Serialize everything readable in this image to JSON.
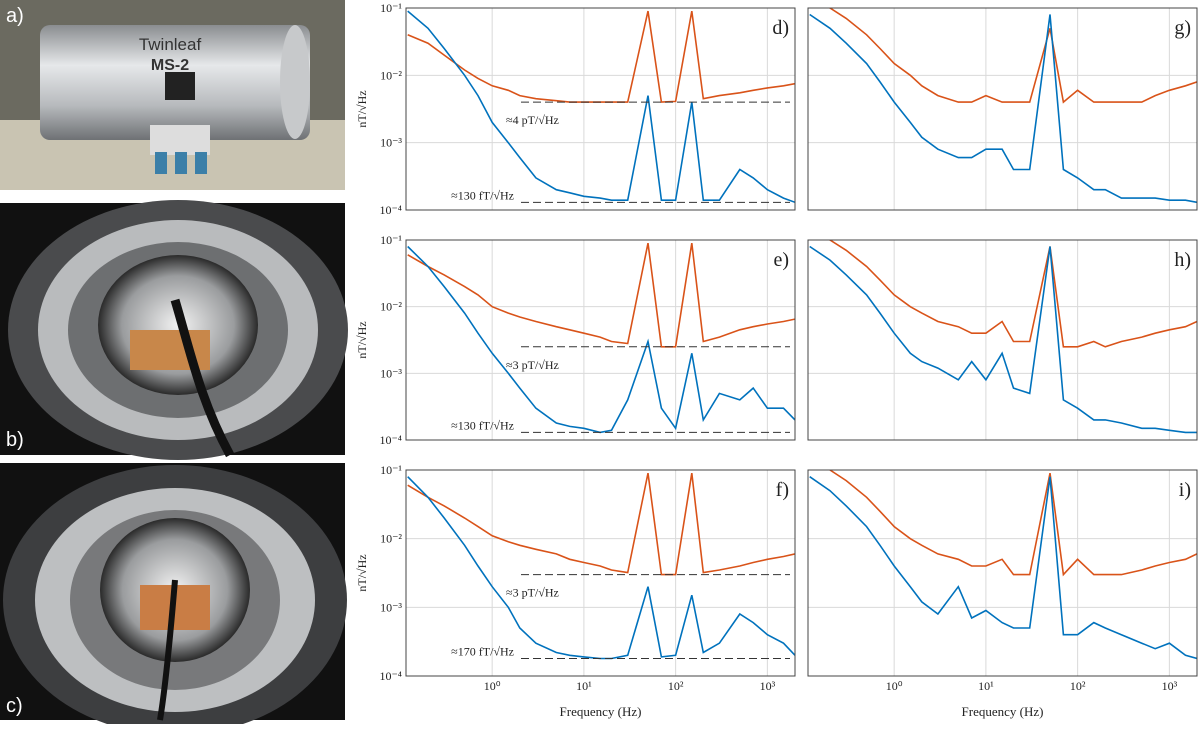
{
  "photos": [
    {
      "label": "a)",
      "texts": [
        "Twinleaf",
        "MS-2"
      ]
    },
    {
      "label": "b)"
    },
    {
      "label": "c)"
    }
  ],
  "chart_data": [
    {
      "type": "line",
      "panel": "d)",
      "ylabel": "nT/√Hz",
      "x": [
        0.12,
        0.2,
        0.3,
        0.5,
        0.7,
        1,
        1.5,
        2,
        3,
        5,
        7,
        10,
        15,
        20,
        30,
        50,
        70,
        100,
        150,
        200,
        300,
        500,
        700,
        1000,
        1500,
        2000
      ],
      "series": [
        {
          "color": "#d95319",
          "values": [
            0.04,
            0.03,
            0.02,
            0.012,
            0.009,
            0.007,
            0.006,
            0.005,
            0.0045,
            0.0042,
            0.004,
            0.004,
            0.004,
            0.004,
            0.004,
            0.09,
            0.004,
            0.0041,
            0.09,
            0.0045,
            0.005,
            0.0055,
            0.006,
            0.0065,
            0.007,
            0.0075
          ]
        },
        {
          "color": "#0072bd",
          "values": [
            0.09,
            0.05,
            0.025,
            0.01,
            0.005,
            0.002,
            0.001,
            0.0006,
            0.0003,
            0.0002,
            0.00018,
            0.00016,
            0.00015,
            0.00014,
            0.00014,
            0.005,
            0.00014,
            0.00014,
            0.004,
            0.00014,
            0.00014,
            0.0004,
            0.0003,
            0.0002,
            0.00015,
            0.00013
          ]
        }
      ],
      "annotations": [
        {
          "text": "≈4 pT/√Hz",
          "value": 0.004
        },
        {
          "text": "≈130 fT/√Hz",
          "value": 0.00013
        }
      ],
      "xlim": [
        0.115,
        2000
      ],
      "ylim": [
        0.0001,
        0.1
      ],
      "xticks": [
        {
          "value": 1,
          "label": "10⁰"
        },
        {
          "value": 10,
          "label": "10¹"
        },
        {
          "value": 100,
          "label": "10²"
        },
        {
          "value": 1000,
          "label": "10³"
        }
      ],
      "yticks": [
        {
          "value": 0.0001,
          "label": "10⁻⁴"
        },
        {
          "value": 0.001,
          "label": "10⁻³"
        },
        {
          "value": 0.01,
          "label": "10⁻²"
        },
        {
          "value": 0.1,
          "label": "10⁻¹"
        }
      ],
      "log_x": true,
      "log_y": true,
      "grid": true
    },
    {
      "type": "line",
      "panel": "e)",
      "ylabel": "nT/√Hz",
      "x": [
        0.12,
        0.2,
        0.3,
        0.5,
        0.7,
        1,
        1.5,
        2,
        3,
        5,
        7,
        10,
        15,
        20,
        30,
        50,
        70,
        100,
        150,
        200,
        300,
        500,
        700,
        1000,
        1500,
        2000
      ],
      "series": [
        {
          "color": "#d95319",
          "values": [
            0.06,
            0.04,
            0.03,
            0.02,
            0.015,
            0.01,
            0.008,
            0.007,
            0.006,
            0.005,
            0.0045,
            0.004,
            0.0035,
            0.003,
            0.0028,
            0.09,
            0.0025,
            0.0025,
            0.09,
            0.003,
            0.0035,
            0.0045,
            0.005,
            0.0055,
            0.006,
            0.0065
          ]
        },
        {
          "color": "#0072bd",
          "values": [
            0.08,
            0.04,
            0.02,
            0.008,
            0.004,
            0.002,
            0.001,
            0.0006,
            0.0003,
            0.00018,
            0.00016,
            0.00015,
            0.00013,
            0.00014,
            0.0004,
            0.003,
            0.0003,
            0.00015,
            0.002,
            0.0002,
            0.0005,
            0.0004,
            0.0006,
            0.0003,
            0.0003,
            0.0002
          ]
        }
      ],
      "annotations": [
        {
          "text": "≈3 pT/√Hz",
          "value": 0.0025
        },
        {
          "text": "≈130 fT/√Hz",
          "value": 0.00013
        }
      ],
      "xlim": [
        0.115,
        2000
      ],
      "ylim": [
        0.0001,
        0.1
      ],
      "xticks": [
        {
          "value": 1,
          "label": "10⁰"
        },
        {
          "value": 10,
          "label": "10¹"
        },
        {
          "value": 100,
          "label": "10²"
        },
        {
          "value": 1000,
          "label": "10³"
        }
      ],
      "yticks": [
        {
          "value": 0.0001,
          "label": "10⁻⁴"
        },
        {
          "value": 0.001,
          "label": "10⁻³"
        },
        {
          "value": 0.01,
          "label": "10⁻²"
        },
        {
          "value": 0.1,
          "label": "10⁻¹"
        }
      ],
      "log_x": true,
      "log_y": true,
      "grid": true
    },
    {
      "type": "line",
      "panel": "f)",
      "ylabel": "nT/√Hz",
      "xlabel": "Frequency (Hz)",
      "x": [
        0.12,
        0.2,
        0.3,
        0.5,
        0.7,
        1,
        1.5,
        2,
        3,
        5,
        7,
        10,
        15,
        20,
        30,
        50,
        70,
        100,
        150,
        200,
        300,
        500,
        700,
        1000,
        1500,
        2000
      ],
      "series": [
        {
          "color": "#d95319",
          "values": [
            0.06,
            0.04,
            0.03,
            0.02,
            0.015,
            0.011,
            0.009,
            0.008,
            0.007,
            0.006,
            0.005,
            0.0045,
            0.004,
            0.0035,
            0.0032,
            0.09,
            0.003,
            0.003,
            0.09,
            0.0032,
            0.0035,
            0.004,
            0.0045,
            0.005,
            0.0055,
            0.006
          ]
        },
        {
          "color": "#0072bd",
          "values": [
            0.08,
            0.04,
            0.02,
            0.008,
            0.004,
            0.002,
            0.001,
            0.0005,
            0.0003,
            0.00022,
            0.0002,
            0.00019,
            0.00018,
            0.00018,
            0.0002,
            0.002,
            0.00019,
            0.0002,
            0.0015,
            0.00022,
            0.0003,
            0.0008,
            0.0006,
            0.0004,
            0.0003,
            0.0002
          ]
        }
      ],
      "annotations": [
        {
          "text": "≈3 pT/√Hz",
          "value": 0.003
        },
        {
          "text": "≈170 fT/√Hz",
          "value": 0.00018
        }
      ],
      "xlim": [
        0.115,
        2000
      ],
      "ylim": [
        0.0001,
        0.1
      ],
      "xticks": [
        {
          "value": 1,
          "label": "10⁰"
        },
        {
          "value": 10,
          "label": "10¹"
        },
        {
          "value": 100,
          "label": "10²"
        },
        {
          "value": 1000,
          "label": "10³"
        }
      ],
      "yticks": [
        {
          "value": 0.0001,
          "label": "10⁻⁴"
        },
        {
          "value": 0.001,
          "label": "10⁻³"
        },
        {
          "value": 0.01,
          "label": "10⁻²"
        },
        {
          "value": 0.1,
          "label": "10⁻¹"
        }
      ],
      "log_x": true,
      "log_y": true,
      "grid": true
    },
    {
      "type": "line",
      "panel": "g)",
      "x": [
        0.12,
        0.2,
        0.3,
        0.5,
        0.7,
        1,
        1.5,
        2,
        3,
        5,
        7,
        10,
        15,
        20,
        30,
        50,
        70,
        100,
        150,
        200,
        300,
        500,
        700,
        1000,
        1500,
        2000
      ],
      "series": [
        {
          "color": "#d95319",
          "values": [
            0.15,
            0.1,
            0.07,
            0.04,
            0.025,
            0.015,
            0.01,
            0.007,
            0.005,
            0.004,
            0.004,
            0.005,
            0.004,
            0.004,
            0.004,
            0.05,
            0.004,
            0.006,
            0.004,
            0.004,
            0.004,
            0.004,
            0.005,
            0.006,
            0.007,
            0.008
          ]
        },
        {
          "color": "#0072bd",
          "values": [
            0.08,
            0.05,
            0.03,
            0.015,
            0.008,
            0.004,
            0.002,
            0.0012,
            0.0008,
            0.0006,
            0.0006,
            0.0008,
            0.0008,
            0.0004,
            0.0004,
            0.08,
            0.0004,
            0.0003,
            0.0002,
            0.0002,
            0.00015,
            0.00015,
            0.00015,
            0.00014,
            0.00014,
            0.00013
          ]
        }
      ],
      "xlim": [
        0.115,
        2000
      ],
      "ylim": [
        0.0001,
        0.1
      ],
      "xticks": [
        {
          "value": 1,
          "label": "10⁰"
        },
        {
          "value": 10,
          "label": "10¹"
        },
        {
          "value": 100,
          "label": "10²"
        },
        {
          "value": 1000,
          "label": "10³"
        }
      ],
      "yticks": [
        {
          "value": 0.0001,
          "label": "10⁻⁴"
        },
        {
          "value": 0.001,
          "label": "10⁻³"
        },
        {
          "value": 0.01,
          "label": "10⁻²"
        },
        {
          "value": 0.1,
          "label": "10⁻¹"
        }
      ],
      "log_x": true,
      "log_y": true,
      "grid": true
    },
    {
      "type": "line",
      "panel": "h)",
      "x": [
        0.12,
        0.2,
        0.3,
        0.5,
        0.7,
        1,
        1.5,
        2,
        3,
        5,
        7,
        10,
        15,
        20,
        30,
        50,
        70,
        100,
        150,
        200,
        300,
        500,
        700,
        1000,
        1500,
        2000
      ],
      "series": [
        {
          "color": "#d95319",
          "values": [
            0.15,
            0.1,
            0.07,
            0.04,
            0.025,
            0.015,
            0.01,
            0.008,
            0.006,
            0.005,
            0.004,
            0.004,
            0.006,
            0.003,
            0.003,
            0.08,
            0.0025,
            0.0025,
            0.003,
            0.0025,
            0.003,
            0.0035,
            0.004,
            0.0045,
            0.005,
            0.006
          ]
        },
        {
          "color": "#0072bd",
          "values": [
            0.08,
            0.05,
            0.03,
            0.015,
            0.008,
            0.004,
            0.002,
            0.0015,
            0.0012,
            0.0008,
            0.0015,
            0.0008,
            0.002,
            0.0006,
            0.0005,
            0.08,
            0.0004,
            0.0003,
            0.0002,
            0.0002,
            0.00018,
            0.00015,
            0.00015,
            0.00014,
            0.00013,
            0.00013
          ]
        }
      ],
      "xlim": [
        0.115,
        2000
      ],
      "ylim": [
        0.0001,
        0.1
      ],
      "xticks": [
        {
          "value": 1,
          "label": "10⁰"
        },
        {
          "value": 10,
          "label": "10¹"
        },
        {
          "value": 100,
          "label": "10²"
        },
        {
          "value": 1000,
          "label": "10³"
        }
      ],
      "yticks": [
        {
          "value": 0.0001,
          "label": "10⁻⁴"
        },
        {
          "value": 0.001,
          "label": "10⁻³"
        },
        {
          "value": 0.01,
          "label": "10⁻²"
        },
        {
          "value": 0.1,
          "label": "10⁻¹"
        }
      ],
      "log_x": true,
      "log_y": true,
      "grid": true
    },
    {
      "type": "line",
      "panel": "i)",
      "xlabel": "Frequency (Hz)",
      "x": [
        0.12,
        0.2,
        0.3,
        0.5,
        0.7,
        1,
        1.5,
        2,
        3,
        5,
        7,
        10,
        15,
        20,
        30,
        50,
        70,
        100,
        150,
        200,
        300,
        500,
        700,
        1000,
        1500,
        2000
      ],
      "series": [
        {
          "color": "#d95319",
          "values": [
            0.15,
            0.1,
            0.07,
            0.04,
            0.025,
            0.015,
            0.01,
            0.008,
            0.006,
            0.005,
            0.004,
            0.004,
            0.005,
            0.003,
            0.003,
            0.09,
            0.003,
            0.005,
            0.003,
            0.003,
            0.003,
            0.0035,
            0.004,
            0.0045,
            0.005,
            0.006
          ]
        },
        {
          "color": "#0072bd",
          "values": [
            0.08,
            0.05,
            0.03,
            0.015,
            0.008,
            0.004,
            0.002,
            0.0012,
            0.0008,
            0.002,
            0.0007,
            0.0009,
            0.0006,
            0.0005,
            0.0005,
            0.08,
            0.0004,
            0.0004,
            0.0006,
            0.0005,
            0.0004,
            0.0003,
            0.00025,
            0.0003,
            0.0002,
            0.00018
          ]
        }
      ],
      "xlim": [
        0.115,
        2000
      ],
      "ylim": [
        0.0001,
        0.1
      ],
      "xticks": [
        {
          "value": 1,
          "label": "10⁰"
        },
        {
          "value": 10,
          "label": "10¹"
        },
        {
          "value": 100,
          "label": "10²"
        },
        {
          "value": 1000,
          "label": "10³"
        }
      ],
      "yticks": [
        {
          "value": 0.0001,
          "label": "10⁻⁴"
        },
        {
          "value": 0.001,
          "label": "10⁻³"
        },
        {
          "value": 0.01,
          "label": "10⁻²"
        },
        {
          "value": 0.1,
          "label": "10⁻¹"
        }
      ],
      "log_x": true,
      "log_y": true,
      "grid": true
    }
  ]
}
